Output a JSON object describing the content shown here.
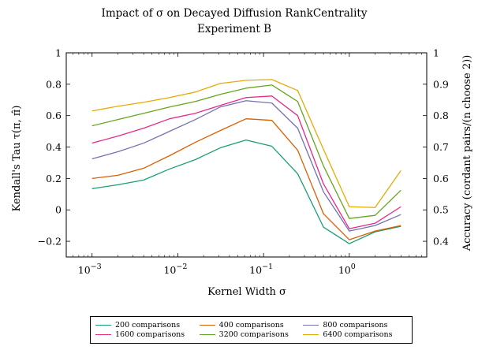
{
  "chart_data": {
    "type": "line",
    "title": "Impact of σ on Decayed Diffusion RankCentrality",
    "subtitle": "Experiment B",
    "xlabel": "Kernel Width σ",
    "ylabel": "Kendall's Tau τ(π, π̂)",
    "ylabel_right": "Accuracy (cordant pairs/(n choose 2))",
    "x_scale": "log",
    "xlim": [
      0.0005,
      8
    ],
    "ylim": [
      -0.3,
      1.0
    ],
    "ylim_right": [
      0.35,
      1.0
    ],
    "x_ticks": [
      {
        "value": 0.001,
        "base": "10",
        "exp": "−3"
      },
      {
        "value": 0.01,
        "base": "10",
        "exp": "−2"
      },
      {
        "value": 0.1,
        "base": "10",
        "exp": "−1"
      },
      {
        "value": 1,
        "base": "10",
        "exp": "0"
      }
    ],
    "y_ticks": [
      -0.2,
      0,
      0.2,
      0.4,
      0.6,
      0.8,
      1
    ],
    "y_tick_labels": [
      "−0.2",
      "0",
      "0.2",
      "0.4",
      "0.6",
      "0.8",
      "1"
    ],
    "y_right_ticks": [
      0.4,
      0.5,
      0.6,
      0.7,
      0.8,
      0.9,
      1
    ],
    "y_right_tick_labels": [
      "0.4",
      "0.5",
      "0.6",
      "0.7",
      "0.8",
      "0.9",
      "1"
    ],
    "grid": false,
    "legend_position": "bottom",
    "x": [
      0.001,
      0.002,
      0.004,
      0.008,
      0.016,
      0.03125,
      0.0625,
      0.125,
      0.25,
      0.5,
      1,
      2,
      4
    ],
    "series": [
      {
        "name": "200 comparisons",
        "color": "#1a9e77",
        "values": [
          0.135,
          0.16,
          0.19,
          0.26,
          0.32,
          0.395,
          0.445,
          0.405,
          0.23,
          -0.11,
          -0.215,
          -0.14,
          -0.105
        ]
      },
      {
        "name": "400 comparisons",
        "color": "#d95f02",
        "values": [
          0.2,
          0.22,
          0.265,
          0.345,
          0.43,
          0.505,
          0.58,
          0.57,
          0.38,
          -0.025,
          -0.19,
          -0.135,
          -0.1
        ]
      },
      {
        "name": "800 comparisons",
        "color": "#7570b3",
        "values": [
          0.325,
          0.37,
          0.425,
          0.5,
          0.575,
          0.655,
          0.695,
          0.68,
          0.52,
          0.115,
          -0.135,
          -0.1,
          -0.03
        ]
      },
      {
        "name": "1600 comparisons",
        "color": "#e7298a",
        "values": [
          0.425,
          0.47,
          0.52,
          0.58,
          0.615,
          0.665,
          0.715,
          0.725,
          0.6,
          0.165,
          -0.12,
          -0.085,
          0.02
        ]
      },
      {
        "name": "3200 comparisons",
        "color": "#66a61e",
        "values": [
          0.535,
          0.575,
          0.615,
          0.655,
          0.69,
          0.735,
          0.775,
          0.795,
          0.69,
          0.28,
          -0.055,
          -0.035,
          0.125
        ]
      },
      {
        "name": "6400 comparisons",
        "color": "#e6ab02",
        "values": [
          0.63,
          0.66,
          0.685,
          0.715,
          0.75,
          0.805,
          0.825,
          0.83,
          0.76,
          0.385,
          0.02,
          0.015,
          0.25
        ]
      }
    ]
  }
}
